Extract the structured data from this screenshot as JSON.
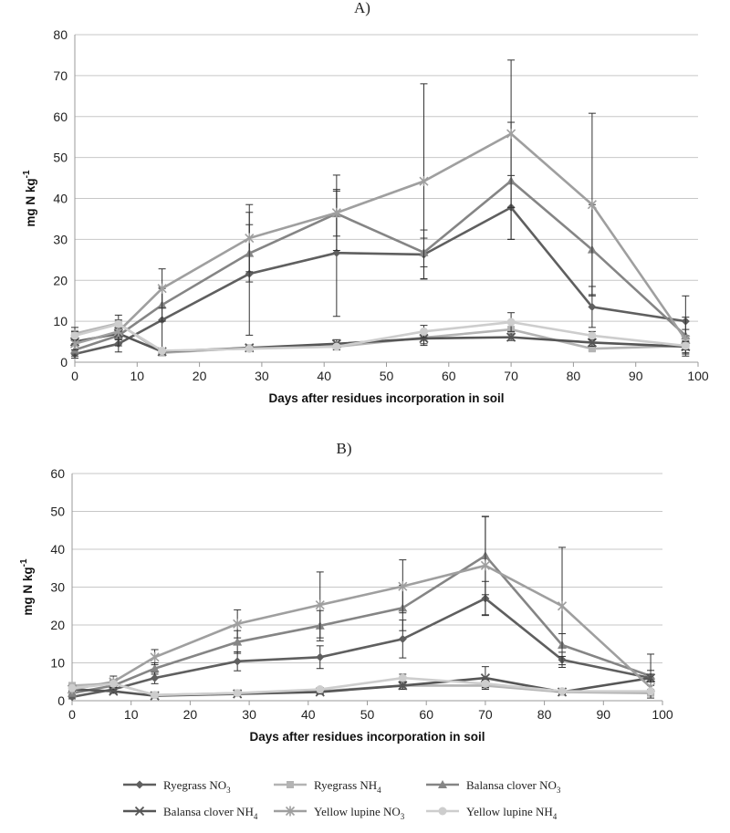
{
  "colors": {
    "ryegrass_no3": "#5f5f5f",
    "ryegrass_nh4": "#b4b4b4",
    "balansa_no3": "#858585",
    "balansa_nh4": "#565656",
    "lupine_no3": "#9f9f9f",
    "lupine_nh4": "#cdcdcd",
    "grid": "#c7c7c7",
    "axis": "#9a9a9a",
    "error": "#333333"
  },
  "legend": {
    "items": [
      {
        "label": "Ryegrass NO",
        "sub": "3",
        "marker": "diamond",
        "color_key": "ryegrass_no3"
      },
      {
        "label": "Ryegrass NH",
        "sub": "4",
        "marker": "square",
        "color_key": "ryegrass_nh4"
      },
      {
        "label": "Balansa clover NO",
        "sub": "3",
        "marker": "triangle",
        "color_key": "balansa_no3"
      },
      {
        "label": "Balansa clover NH",
        "sub": "4",
        "marker": "x",
        "color_key": "balansa_nh4"
      },
      {
        "label": "Yellow lupine NO",
        "sub": "3",
        "marker": "star",
        "color_key": "lupine_no3"
      },
      {
        "label": "Yellow lupine NH",
        "sub": "4",
        "marker": "circle",
        "color_key": "lupine_nh4"
      }
    ]
  },
  "chart_data": [
    {
      "type": "line",
      "title": "A)",
      "xlabel": "Days after residues incorporation in soil",
      "ylabel": "mg N kg",
      "ylabel_sup": "-1",
      "xlim": [
        0,
        100
      ],
      "ylim": [
        0,
        80
      ],
      "xticks": [
        0,
        10,
        20,
        30,
        40,
        50,
        60,
        70,
        80,
        90,
        100
      ],
      "yticks": [
        0,
        10,
        20,
        30,
        40,
        50,
        60,
        70,
        80
      ],
      "grid": "horizontal",
      "x": [
        0,
        7,
        14,
        28,
        42,
        56,
        70,
        83,
        98
      ],
      "series": [
        {
          "name": "Ryegrass NO3",
          "marker": "diamond",
          "color_key": "ryegrass_no3",
          "values": [
            2,
            4.5,
            10.3,
            21.6,
            26.7,
            26.3,
            37.8,
            13.5,
            10
          ],
          "errors": [
            1,
            2,
            8,
            15,
            15.5,
            6,
            7.8,
            5,
            6.2
          ]
        },
        {
          "name": "Ryegrass NH4",
          "marker": "square",
          "color_key": "ryegrass_nh4",
          "values": [
            7,
            9.5,
            2.3,
            3.5,
            3.8,
            6,
            8,
            3.3,
            4
          ],
          "errors": [
            1.5,
            2,
            0.5,
            0.5,
            0.8,
            1.5,
            2,
            0.5,
            2.5
          ]
        },
        {
          "name": "Balansa clover NO3",
          "marker": "triangle",
          "color_key": "balansa_no3",
          "values": [
            3,
            6.5,
            14,
            26.6,
            36.3,
            26.8,
            44.3,
            27.5,
            6.5
          ],
          "errors": [
            1.5,
            2.5,
            4,
            7,
            5.5,
            3.5,
            14.3,
            11,
            4.5
          ]
        },
        {
          "name": "Balansa clover NH4",
          "marker": "x",
          "color_key": "balansa_nh4",
          "values": [
            5,
            7,
            2.6,
            3.5,
            4.5,
            5.8,
            6.1,
            4.8,
            3.8
          ],
          "errors": [
            1,
            1.5,
            0.4,
            0.4,
            1,
            1.7,
            0.8,
            0.9,
            1.5
          ]
        },
        {
          "name": "Yellow lupine NO3",
          "marker": "star",
          "color_key": "lupine_no3",
          "values": [
            4.5,
            7.5,
            18,
            30.3,
            36.5,
            44.2,
            55.8,
            38.5,
            5.5
          ],
          "errors": [
            1.5,
            2,
            4.8,
            8.2,
            9.2,
            23.8,
            18,
            22.3,
            2.5
          ]
        },
        {
          "name": "Yellow lupine NH4",
          "marker": "circle",
          "color_key": "lupine_nh4",
          "values": [
            6.5,
            9.3,
            2.8,
            3.3,
            3.8,
            7.5,
            9.8,
            6.5,
            4
          ],
          "errors": [
            1,
            1,
            0.5,
            0.5,
            0.8,
            1.5,
            2.3,
            1,
            1
          ]
        }
      ]
    },
    {
      "type": "line",
      "title": "B)",
      "xlabel": "Days after residues incorporation in soil",
      "ylabel": "mg N kg",
      "ylabel_sup": "-1",
      "xlim": [
        0,
        100
      ],
      "ylim": [
        0,
        60
      ],
      "xticks": [
        0,
        10,
        20,
        30,
        40,
        50,
        60,
        70,
        80,
        90,
        100
      ],
      "yticks": [
        0,
        10,
        20,
        30,
        40,
        50,
        60
      ],
      "grid": "horizontal",
      "x": [
        0,
        7,
        14,
        28,
        42,
        56,
        70,
        83,
        98
      ],
      "series": [
        {
          "name": "Ryegrass NO3",
          "marker": "diamond",
          "color_key": "ryegrass_no3",
          "values": [
            1,
            3,
            6,
            10.4,
            11.5,
            16.3,
            27,
            10.8,
            6
          ],
          "errors": [
            0.5,
            1,
            1.5,
            2.5,
            3,
            5,
            4.5,
            2,
            2
          ]
        },
        {
          "name": "Ryegrass NH4",
          "marker": "square",
          "color_key": "ryegrass_nh4",
          "values": [
            4,
            4.5,
            1.5,
            2,
            2.5,
            4,
            4,
            2.3,
            2
          ],
          "errors": [
            0.5,
            0.5,
            0.3,
            0.3,
            0.5,
            0.8,
            0.8,
            0.5,
            0.5
          ]
        },
        {
          "name": "Balansa clover NO3",
          "marker": "triangle",
          "color_key": "balansa_no3",
          "values": [
            2,
            4,
            8.5,
            15.5,
            19.8,
            24.5,
            38.3,
            14.7,
            6.5
          ],
          "errors": [
            0.5,
            1.5,
            1.5,
            3,
            4,
            6,
            10.3,
            3,
            5.8
          ]
        },
        {
          "name": "Balansa clover NH4",
          "marker": "x",
          "color_key": "balansa_nh4",
          "values": [
            3,
            2.5,
            1.3,
            1.8,
            2.3,
            4,
            6,
            2.3,
            6
          ],
          "errors": [
            0.5,
            0.5,
            0.3,
            0.3,
            0.5,
            1,
            3,
            0.5,
            1
          ]
        },
        {
          "name": "Yellow lupine NO3",
          "marker": "star",
          "color_key": "lupine_no3",
          "values": [
            3,
            5,
            11.5,
            20.3,
            25.3,
            30.2,
            35.7,
            25,
            3.5
          ],
          "errors": [
            0.5,
            1.5,
            2,
            3.7,
            8.7,
            7,
            13,
            15.5,
            1.5
          ]
        },
        {
          "name": "Yellow lupine NH4",
          "marker": "circle",
          "color_key": "lupine_nh4",
          "values": [
            3.3,
            4.5,
            1.5,
            2,
            3,
            6,
            4.5,
            2.5,
            2.5
          ],
          "errors": [
            0.5,
            0.5,
            0.3,
            0.3,
            0.5,
            1,
            1,
            0.5,
            0.5
          ]
        }
      ]
    }
  ]
}
